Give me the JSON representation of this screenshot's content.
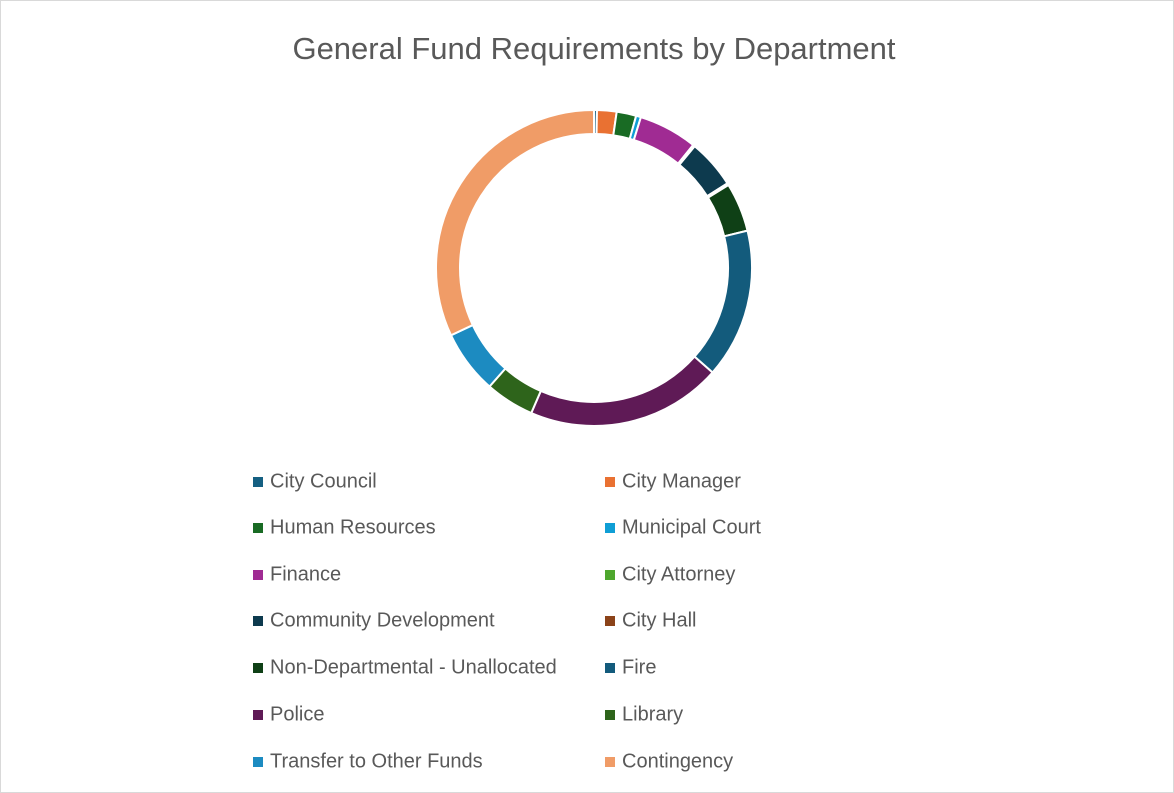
{
  "chart_data": {
    "type": "donut",
    "title": "General Fund Requirements by Department",
    "categories": [
      "City Council",
      "City Manager",
      "Human Resources",
      "Municipal Court",
      "Finance",
      "City Attorney",
      "Community Development",
      "City Hall",
      "Non-Departmental - Unallocated",
      "Fire",
      "Police",
      "Library",
      "Transfer to Other Funds",
      "Contingency"
    ],
    "values": [
      0.3,
      2,
      2,
      0.5,
      6,
      0.2,
      5,
      0.2,
      5,
      15.3,
      20,
      5,
      6.5,
      32
    ],
    "colors": [
      "#156082",
      "#e97132",
      "#196b24",
      "#0f9ed5",
      "#a02b93",
      "#4ea72e",
      "#0d3a4e",
      "#8b4319",
      "#0f4016",
      "#135b7c",
      "#5f1a56",
      "#2e641b",
      "#1c8bc1",
      "#f09c67"
    ],
    "legend": "bottom"
  }
}
